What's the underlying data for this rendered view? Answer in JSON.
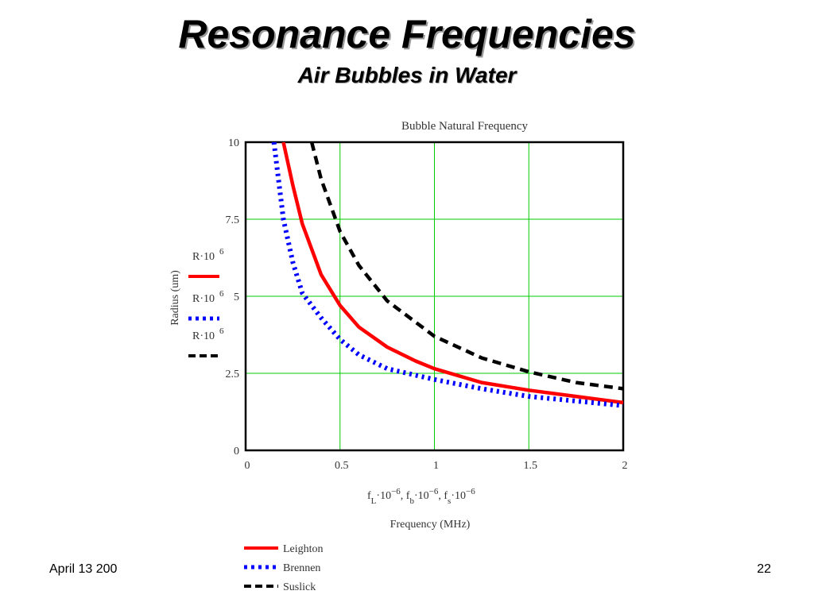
{
  "slide": {
    "title": "Resonance Frequencies",
    "subtitle": "Air Bubbles in Water",
    "footer_date": "April 13 200",
    "page_number": "22"
  },
  "colors": {
    "leighton": "#ff0000",
    "brennen": "#0000ff",
    "suslick": "#000000",
    "grid": "#00cc00"
  },
  "chart_data": {
    "type": "line",
    "title": "Bubble Natural Frequency",
    "xlabel": "Frequency (MHz)",
    "x_expression": [
      "f",
      "L",
      "·10",
      "−6",
      ", f",
      "b",
      "·10",
      "−6",
      ", f",
      "s",
      "·10",
      "−6"
    ],
    "ylabel": "Radius (um)",
    "y_expression": "R·10",
    "y_expression_exp": "6",
    "xlim": [
      0,
      2
    ],
    "ylim": [
      0,
      10
    ],
    "x_ticks": [
      "0",
      "0.5",
      "1",
      "1.5",
      "2"
    ],
    "y_ticks": [
      "0",
      "2.5",
      "5",
      "7.5",
      "10"
    ],
    "grid": true,
    "legend": [
      "Leighton",
      "Brennen",
      "Suslick"
    ],
    "series": [
      {
        "name": "Leighton",
        "style": "solid",
        "x": [
          0.2,
          0.25,
          0.3,
          0.4,
          0.5,
          0.6,
          0.75,
          0.9,
          1.0,
          1.25,
          1.5,
          1.75,
          2.0
        ],
        "y": [
          10,
          8.6,
          7.35,
          5.7,
          4.7,
          4.0,
          3.35,
          2.9,
          2.65,
          2.2,
          1.95,
          1.75,
          1.55
        ]
      },
      {
        "name": "Brennen",
        "style": "dotted",
        "x": [
          0.15,
          0.2,
          0.25,
          0.3,
          0.4,
          0.5,
          0.6,
          0.75,
          1.0,
          1.25,
          1.5,
          1.75,
          2.0
        ],
        "y": [
          10,
          7.5,
          6.1,
          5.1,
          4.3,
          3.6,
          3.1,
          2.65,
          2.3,
          2.0,
          1.75,
          1.6,
          1.45
        ]
      },
      {
        "name": "Suslick",
        "style": "dashed",
        "x": [
          0.35,
          0.4,
          0.5,
          0.6,
          0.75,
          1.0,
          1.25,
          1.5,
          1.75,
          2.0
        ],
        "y": [
          10,
          8.8,
          7.1,
          6.0,
          4.85,
          3.7,
          3.0,
          2.55,
          2.2,
          2.0
        ]
      }
    ]
  }
}
